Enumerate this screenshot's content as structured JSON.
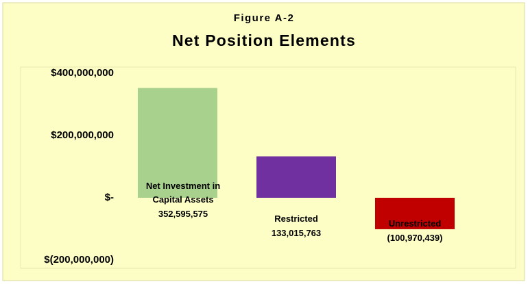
{
  "chart_data": {
    "type": "bar",
    "subtitle": "Figure A-2",
    "title": "Net Position Elements",
    "categories": [
      "Net Investment in Capital Assets",
      "Restricted",
      "Unrestricted"
    ],
    "values": [
      352595575,
      133015763,
      -100970439
    ],
    "value_labels": [
      "352,595,575",
      "133,015,763",
      "(100,970,439)"
    ],
    "colors": [
      "#a9d18e",
      "#7030a0",
      "#c00000"
    ],
    "ylim": [
      -200000000,
      400000000
    ],
    "yticks": [
      {
        "value": 400000000,
        "label": "$400,000,000"
      },
      {
        "value": 200000000,
        "label": "$200,000,000"
      },
      {
        "value": 0,
        "label": "$-"
      },
      {
        "value": -200000000,
        "label": "$(200,000,000)"
      }
    ],
    "grid": false
  }
}
